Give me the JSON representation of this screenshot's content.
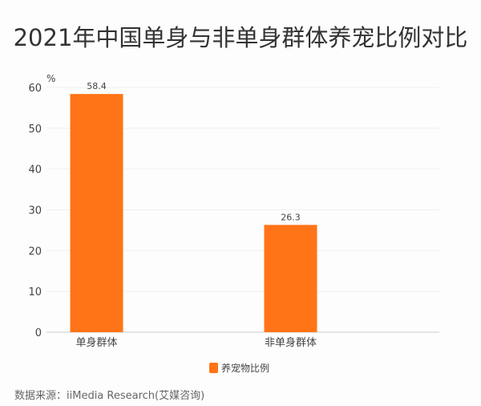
{
  "chart_data": {
    "type": "bar",
    "title": "2021年中国单身与非单身群体养宠比例对比",
    "ylabel": "%",
    "categories": [
      "单身群体",
      "非单身群体"
    ],
    "series": [
      {
        "name": "养宠物比例",
        "values": [
          58.4,
          26.3
        ],
        "color": "#FF7417"
      }
    ],
    "ylim": [
      0,
      60
    ],
    "yticks": [
      0,
      10,
      20,
      30,
      40,
      50,
      60
    ],
    "grid": true,
    "legend": "bottom-center",
    "data_labels": [
      "58.4",
      "26.3"
    ]
  },
  "source": "数据来源：iiMedia Research(艾媒咨询)"
}
